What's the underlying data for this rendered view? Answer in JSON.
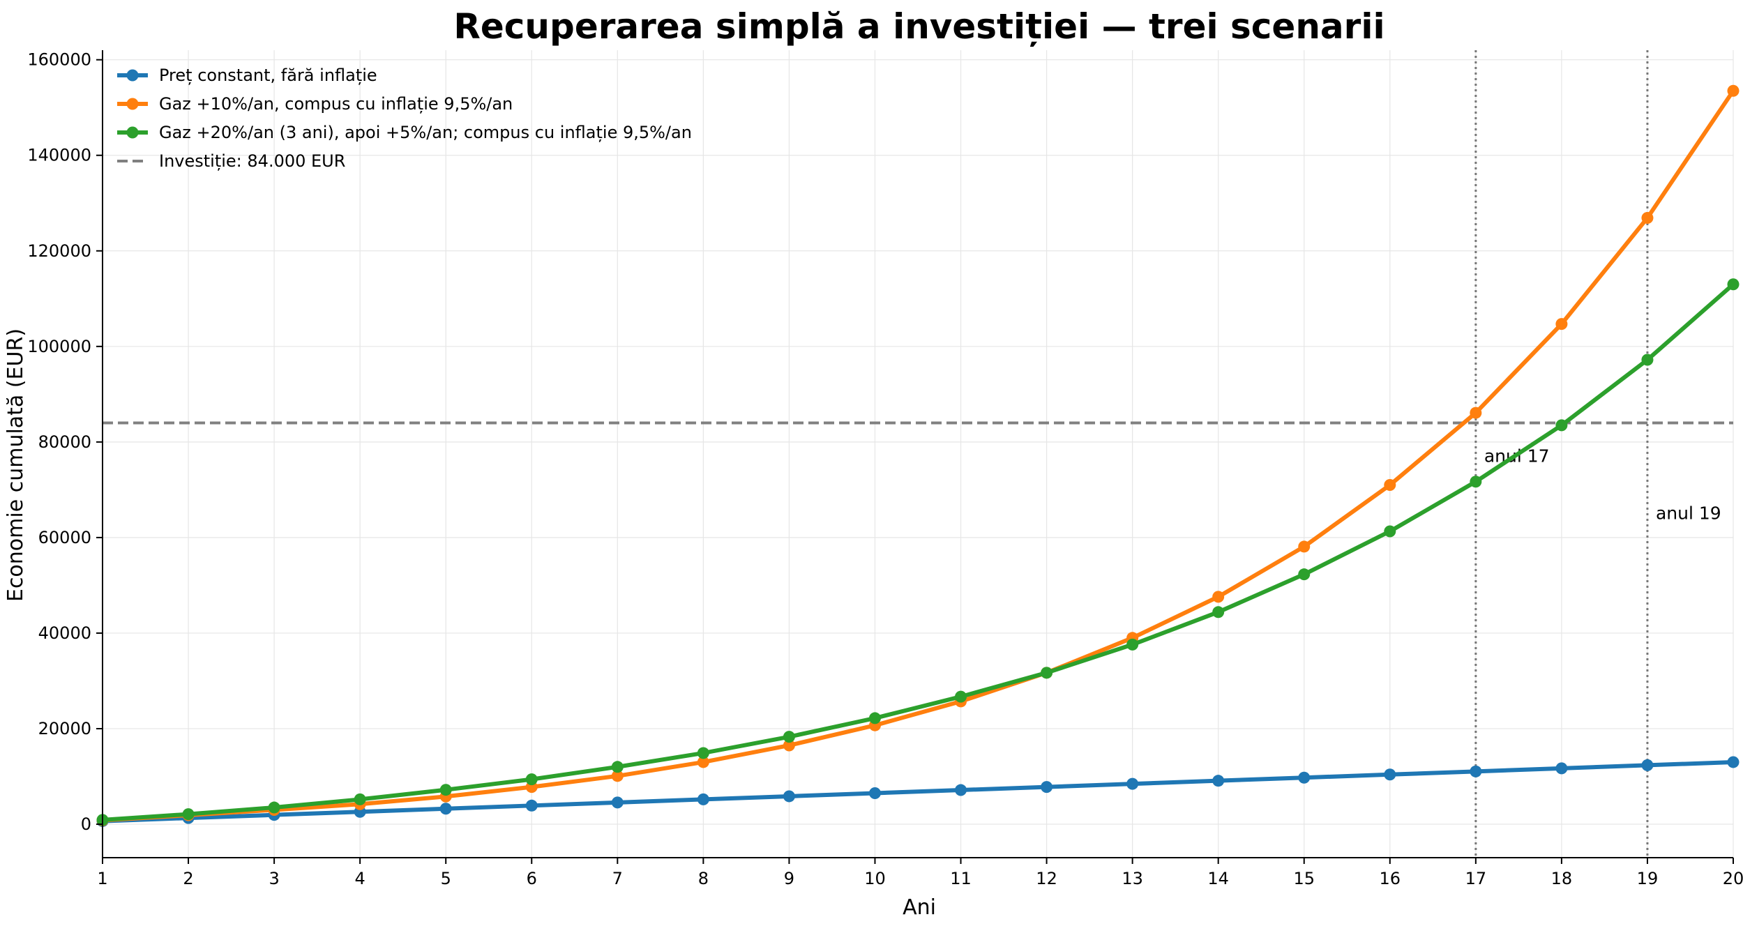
{
  "chart_data": {
    "type": "line",
    "title": "Recuperarea simplă a investiției — trei scenarii",
    "xlabel": "Ani",
    "ylabel": "Economie cumulată (EUR)",
    "xlim": [
      1,
      20
    ],
    "ylim": [
      -7000,
      162000
    ],
    "x": [
      1,
      2,
      3,
      4,
      5,
      6,
      7,
      8,
      9,
      10,
      11,
      12,
      13,
      14,
      15,
      16,
      17,
      18,
      19,
      20
    ],
    "x_ticks": [
      1,
      2,
      3,
      4,
      5,
      6,
      7,
      8,
      9,
      10,
      11,
      12,
      13,
      14,
      15,
      16,
      17,
      18,
      19,
      20
    ],
    "y_ticks": [
      0,
      20000,
      40000,
      60000,
      80000,
      100000,
      120000,
      140000,
      160000
    ],
    "grid": true,
    "legend_position": "top-left",
    "series": [
      {
        "name": "Preț constant, fără inflație",
        "color": "#1f77b4",
        "values": [
          650,
          1300,
          1950,
          2600,
          3250,
          3900,
          4550,
          5200,
          5850,
          6500,
          7150,
          7800,
          8450,
          9100,
          9750,
          10400,
          11050,
          11700,
          12350,
          13000
        ]
      },
      {
        "name": "Gaz +10%/an, compus cu inflație 9,5%/an",
        "color": "#ff7f0e",
        "values": [
          800,
          1900,
          3000,
          4200,
          5800,
          7800,
          10100,
          13000,
          16500,
          20700,
          25700,
          31700,
          39000,
          47600,
          58100,
          71000,
          86100,
          104700,
          126900,
          153500
        ]
      },
      {
        "name": "Gaz +20%/an (3 ani), apoi +5%/an; compus cu inflație 9,5%/an",
        "color": "#2ca02c",
        "values": [
          900,
          2100,
          3500,
          5200,
          7200,
          9400,
          12000,
          14900,
          18300,
          22200,
          26700,
          31700,
          37600,
          44400,
          52300,
          61300,
          71700,
          83500,
          97200,
          113000
        ]
      }
    ],
    "hline": {
      "name": "Investiție: 84.000 EUR",
      "value": 84000,
      "color": "#808080"
    },
    "vlines": [
      {
        "x": 17,
        "label": "anul 17",
        "label_y": 77000
      },
      {
        "x": 19,
        "label": "anul 19",
        "label_y": 65000
      }
    ]
  }
}
